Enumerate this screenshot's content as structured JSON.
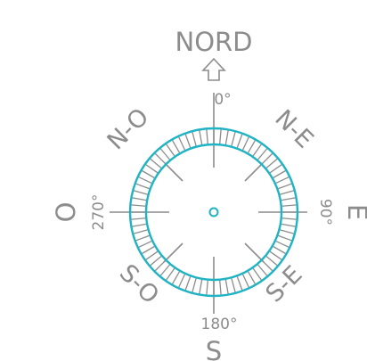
{
  "compass": {
    "north_title": "NORD",
    "labels": {
      "east": "E",
      "west": "O",
      "south": "S",
      "northeast": "N-E",
      "northwest": "N-O",
      "southeast": "S-E",
      "southwest": "S-O"
    },
    "degrees": {
      "north": "0°",
      "east": "90°",
      "south": "180°",
      "west": "270°"
    },
    "colors": {
      "ring": "#1fb3c4",
      "lines": "#8c8c8c",
      "center": "#1fb3c4"
    },
    "icons": {
      "north_arrow": "up-arrow-icon"
    }
  }
}
